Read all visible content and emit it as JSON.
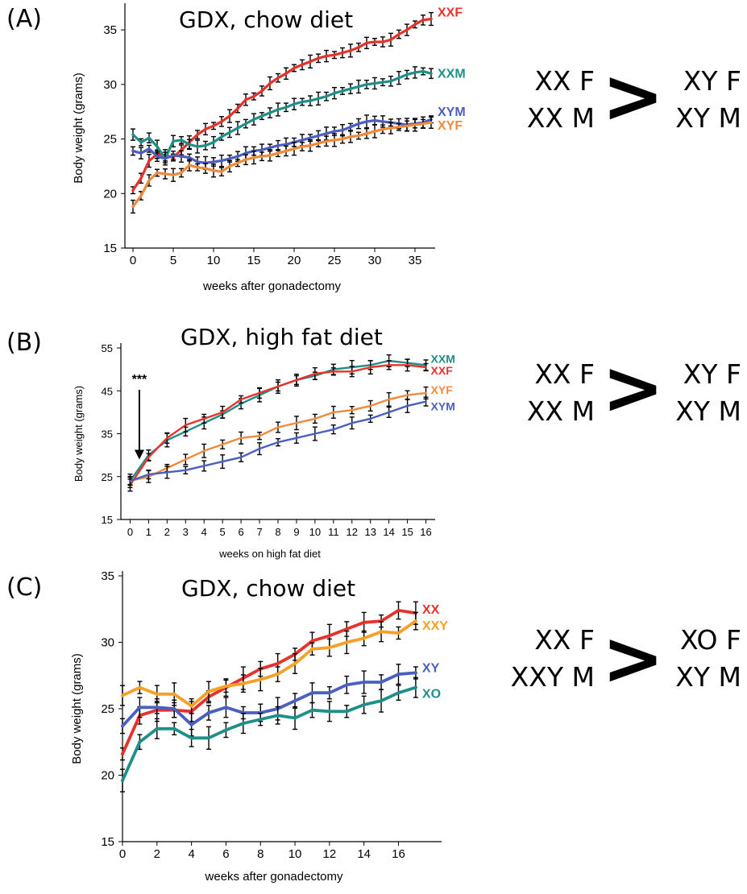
{
  "panels": [
    {
      "label": "(A)",
      "title": "GDX, chow diet",
      "comparison": {
        "left": [
          "XX F",
          "XX M"
        ],
        "symbol": ">",
        "right": [
          "XY F",
          "XY M"
        ]
      }
    },
    {
      "label": "(B)",
      "title": "GDX, high fat diet",
      "comparison": {
        "left": [
          "XX F",
          "XX M"
        ],
        "symbol": ">",
        "right": [
          "XY F",
          "XY M"
        ]
      }
    },
    {
      "label": "(C)",
      "title": "GDX, chow diet",
      "comparison": {
        "left": [
          "XX F",
          "XXY M"
        ],
        "symbol": ">",
        "right": [
          "XO F",
          "XY M"
        ]
      }
    }
  ],
  "chart_data": [
    {
      "type": "line",
      "title": "GDX, chow diet",
      "xlabel": "weeks after gonadectomy",
      "ylabel": "Body weight (grams)",
      "xlim": [
        -1,
        37.5
      ],
      "ylim": [
        15,
        37
      ],
      "xticks": [
        0,
        5,
        10,
        15,
        20,
        25,
        30,
        35
      ],
      "yticks": [
        15,
        20,
        25,
        30,
        35
      ],
      "error_bars": true,
      "legend": "series labels at right end of lines",
      "x": [
        0,
        1,
        2,
        3,
        4,
        5,
        6,
        7,
        8,
        9,
        10,
        11,
        12,
        13,
        14,
        15,
        16,
        17,
        18,
        19,
        20,
        21,
        22,
        23,
        24,
        25,
        26,
        27,
        28,
        29,
        30,
        31,
        32,
        33,
        34,
        35,
        36,
        37
      ],
      "series": [
        {
          "name": "XXF",
          "color": "#e8312a",
          "values": [
            20.3,
            21.4,
            23.0,
            23.6,
            23.5,
            23.3,
            24.0,
            24.7,
            25.4,
            25.9,
            26.2,
            26.6,
            27.1,
            27.8,
            28.6,
            28.9,
            29.4,
            30.1,
            30.6,
            31.0,
            31.5,
            31.8,
            32.1,
            32.4,
            32.6,
            32.7,
            32.9,
            33.1,
            33.4,
            33.8,
            33.9,
            33.9,
            34.1,
            34.6,
            35.0,
            35.5,
            35.9,
            36.0
          ]
        },
        {
          "name": "XXM",
          "color": "#1f8f88",
          "values": [
            25.4,
            24.7,
            25.1,
            24.3,
            23.2,
            24.8,
            24.9,
            24.5,
            24.3,
            24.4,
            24.7,
            25.2,
            25.6,
            26.0,
            26.4,
            26.8,
            27.1,
            27.4,
            27.7,
            27.9,
            28.2,
            28.4,
            28.5,
            28.7,
            28.9,
            29.2,
            29.4,
            29.6,
            29.8,
            30.0,
            30.1,
            30.2,
            30.3,
            30.6,
            30.9,
            31.1,
            31.2,
            31.0
          ]
        },
        {
          "name": "XYM",
          "color": "#4b5fc1",
          "values": [
            23.9,
            23.7,
            24.1,
            23.4,
            23.2,
            23.5,
            23.4,
            23.3,
            22.9,
            22.8,
            22.9,
            23.0,
            23.2,
            23.4,
            23.7,
            23.9,
            24.0,
            24.2,
            24.4,
            24.5,
            24.7,
            24.9,
            25.1,
            25.3,
            25.5,
            25.7,
            25.8,
            26.1,
            26.4,
            26.6,
            26.7,
            26.6,
            26.5,
            26.4,
            26.3,
            26.4,
            26.5,
            26.8
          ]
        },
        {
          "name": "XYF",
          "color": "#f08a3a",
          "values": [
            18.8,
            19.8,
            21.2,
            21.9,
            21.8,
            21.7,
            21.9,
            22.6,
            22.4,
            22.3,
            22.1,
            22.0,
            22.5,
            22.8,
            23.1,
            23.3,
            23.4,
            23.5,
            23.7,
            23.9,
            24.1,
            24.3,
            24.4,
            24.6,
            24.8,
            24.9,
            25.0,
            25.2,
            25.3,
            25.5,
            25.7,
            25.9,
            26.0,
            26.1,
            26.2,
            26.3,
            26.4,
            26.5
          ]
        }
      ]
    },
    {
      "type": "line",
      "title": "GDX, high fat diet",
      "xlabel": "weeks on high fat diet",
      "ylabel": "Body weight (grams)",
      "xlim": [
        -0.5,
        16.5
      ],
      "ylim": [
        15,
        55
      ],
      "xticks": [
        0,
        1,
        2,
        3,
        4,
        5,
        6,
        7,
        8,
        9,
        10,
        11,
        12,
        13,
        14,
        15,
        16
      ],
      "yticks": [
        15,
        25,
        35,
        45,
        55
      ],
      "error_bars": true,
      "annotation": {
        "text": "***",
        "x": 0.5,
        "arrow_to_y": 29
      },
      "legend": "series labels at right end of lines",
      "x": [
        0,
        1,
        2,
        3,
        4,
        5,
        6,
        7,
        8,
        9,
        10,
        11,
        12,
        13,
        14,
        15,
        16
      ],
      "series": [
        {
          "name": "XXM",
          "color": "#1f8f88",
          "values": [
            24,
            30,
            33.5,
            35.5,
            37.5,
            39.5,
            42,
            44,
            46,
            47.5,
            48.5,
            50,
            50.5,
            51,
            52,
            51.5,
            51
          ]
        },
        {
          "name": "XXF",
          "color": "#e8312a",
          "values": [
            23,
            29.5,
            34,
            37,
            38.5,
            40,
            43,
            44.5,
            46,
            47.5,
            49,
            49.5,
            49.5,
            50.5,
            51,
            51,
            50.5
          ]
        },
        {
          "name": "XYF",
          "color": "#f08a3a",
          "values": [
            24,
            25,
            27,
            29,
            31,
            32.5,
            34,
            34.5,
            36.5,
            37.5,
            38.5,
            40,
            40.5,
            41.5,
            43,
            44,
            44.5
          ]
        },
        {
          "name": "XYM",
          "color": "#4b5fc1",
          "values": [
            24,
            25.5,
            26,
            26.5,
            27.5,
            28.5,
            29.5,
            31.5,
            33,
            34,
            35,
            36,
            37.5,
            38.5,
            40,
            41.5,
            42.5
          ]
        }
      ]
    },
    {
      "type": "line",
      "title": "GDX, chow diet",
      "xlabel": "weeks after gonadectomy",
      "ylabel": "Body weight (grams)",
      "xlim": [
        0,
        18.5
      ],
      "ylim": [
        15,
        35
      ],
      "xticks": [
        0,
        2,
        4,
        6,
        8,
        10,
        12,
        14,
        16
      ],
      "yticks": [
        15,
        20,
        25,
        30,
        35
      ],
      "error_bars": true,
      "legend": "series labels at right end of lines",
      "x": [
        0,
        1,
        2,
        3,
        4,
        5,
        6,
        7,
        8,
        9,
        10,
        11,
        12,
        13,
        14,
        15,
        16,
        17
      ],
      "series": [
        {
          "name": "XX",
          "color": "#e8312a",
          "values": [
            21.6,
            24.5,
            24.9,
            24.9,
            24.8,
            25.9,
            26.6,
            27.3,
            28.0,
            28.4,
            29.1,
            30.1,
            30.5,
            31.0,
            31.5,
            31.6,
            32.4,
            32.2
          ]
        },
        {
          "name": "XXY",
          "color": "#f6a027",
          "values": [
            26.0,
            26.6,
            26.1,
            26.1,
            25.2,
            26.3,
            26.7,
            26.9,
            27.2,
            27.6,
            28.4,
            29.5,
            29.6,
            30.0,
            30.3,
            30.8,
            30.7,
            31.6
          ]
        },
        {
          "name": "XY",
          "color": "#4b5fc1",
          "values": [
            23.7,
            25.1,
            25.1,
            25.0,
            23.8,
            24.7,
            25.1,
            24.7,
            24.7,
            25.0,
            25.6,
            26.2,
            26.2,
            26.8,
            27.0,
            27.0,
            27.6,
            27.7
          ]
        },
        {
          "name": "XO",
          "color": "#1f8f88",
          "values": [
            19.6,
            22.5,
            23.5,
            23.5,
            22.8,
            22.8,
            23.4,
            23.9,
            24.2,
            24.5,
            24.3,
            24.9,
            24.8,
            24.8,
            25.3,
            25.6,
            26.2,
            26.6
          ]
        }
      ]
    }
  ]
}
